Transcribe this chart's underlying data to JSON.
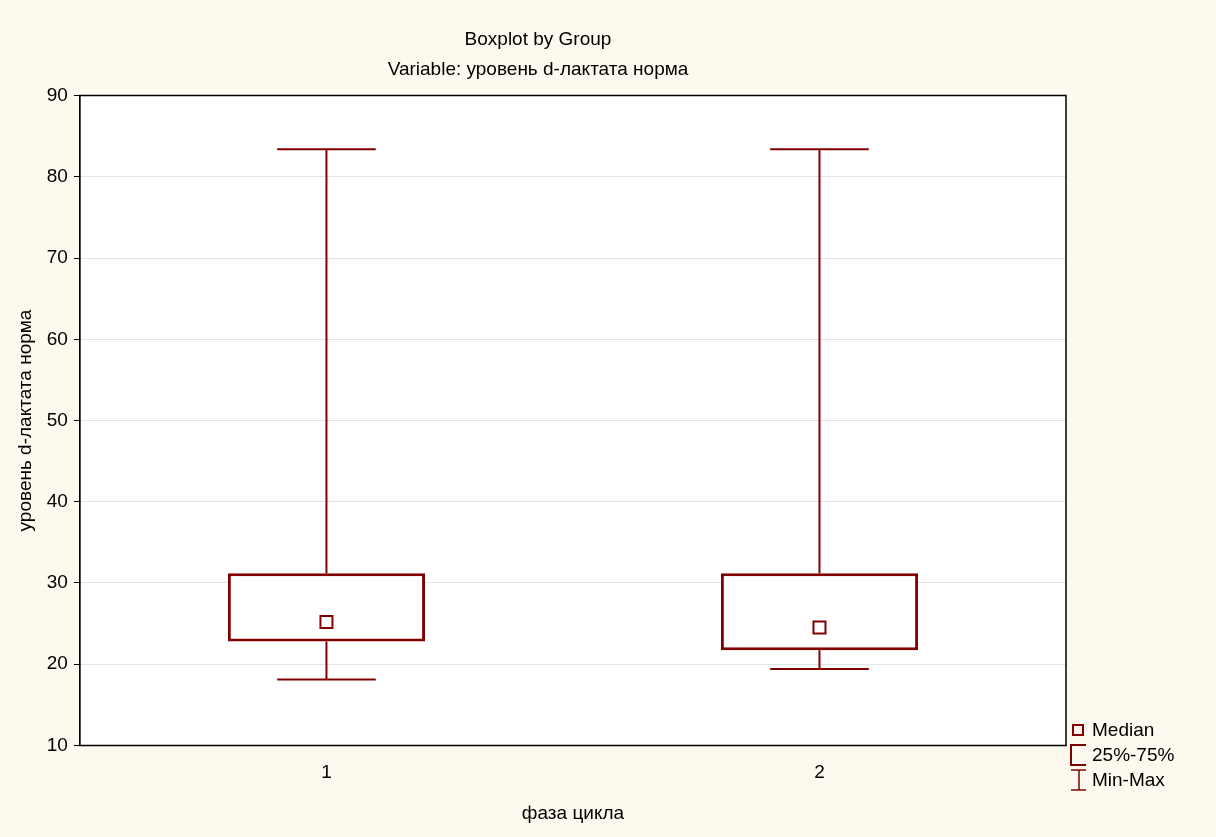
{
  "chart_data": {
    "type": "box",
    "title": "Boxplot by Group",
    "subtitle": "Variable: уровень d-лактата норма",
    "xlabel": "фаза цикла",
    "ylabel": "уровень d-лактата норма",
    "categories": [
      "1",
      "2"
    ],
    "color": "#800000",
    "boxes": [
      {
        "low": 18.1,
        "q1": 22.8,
        "median": 25.2,
        "q3": 31.2,
        "high": 83.4
      },
      {
        "low": 19.4,
        "q1": 21.7,
        "median": 24.5,
        "q3": 31.2,
        "high": 83.4
      }
    ],
    "ylim": [
      10,
      90
    ],
    "yticks": [
      10,
      20,
      30,
      40,
      50,
      60,
      70,
      80,
      90
    ],
    "grid": "y",
    "marker": "square",
    "annotations": [
      "Median",
      "25%-75%",
      "Min-Max"
    ]
  }
}
